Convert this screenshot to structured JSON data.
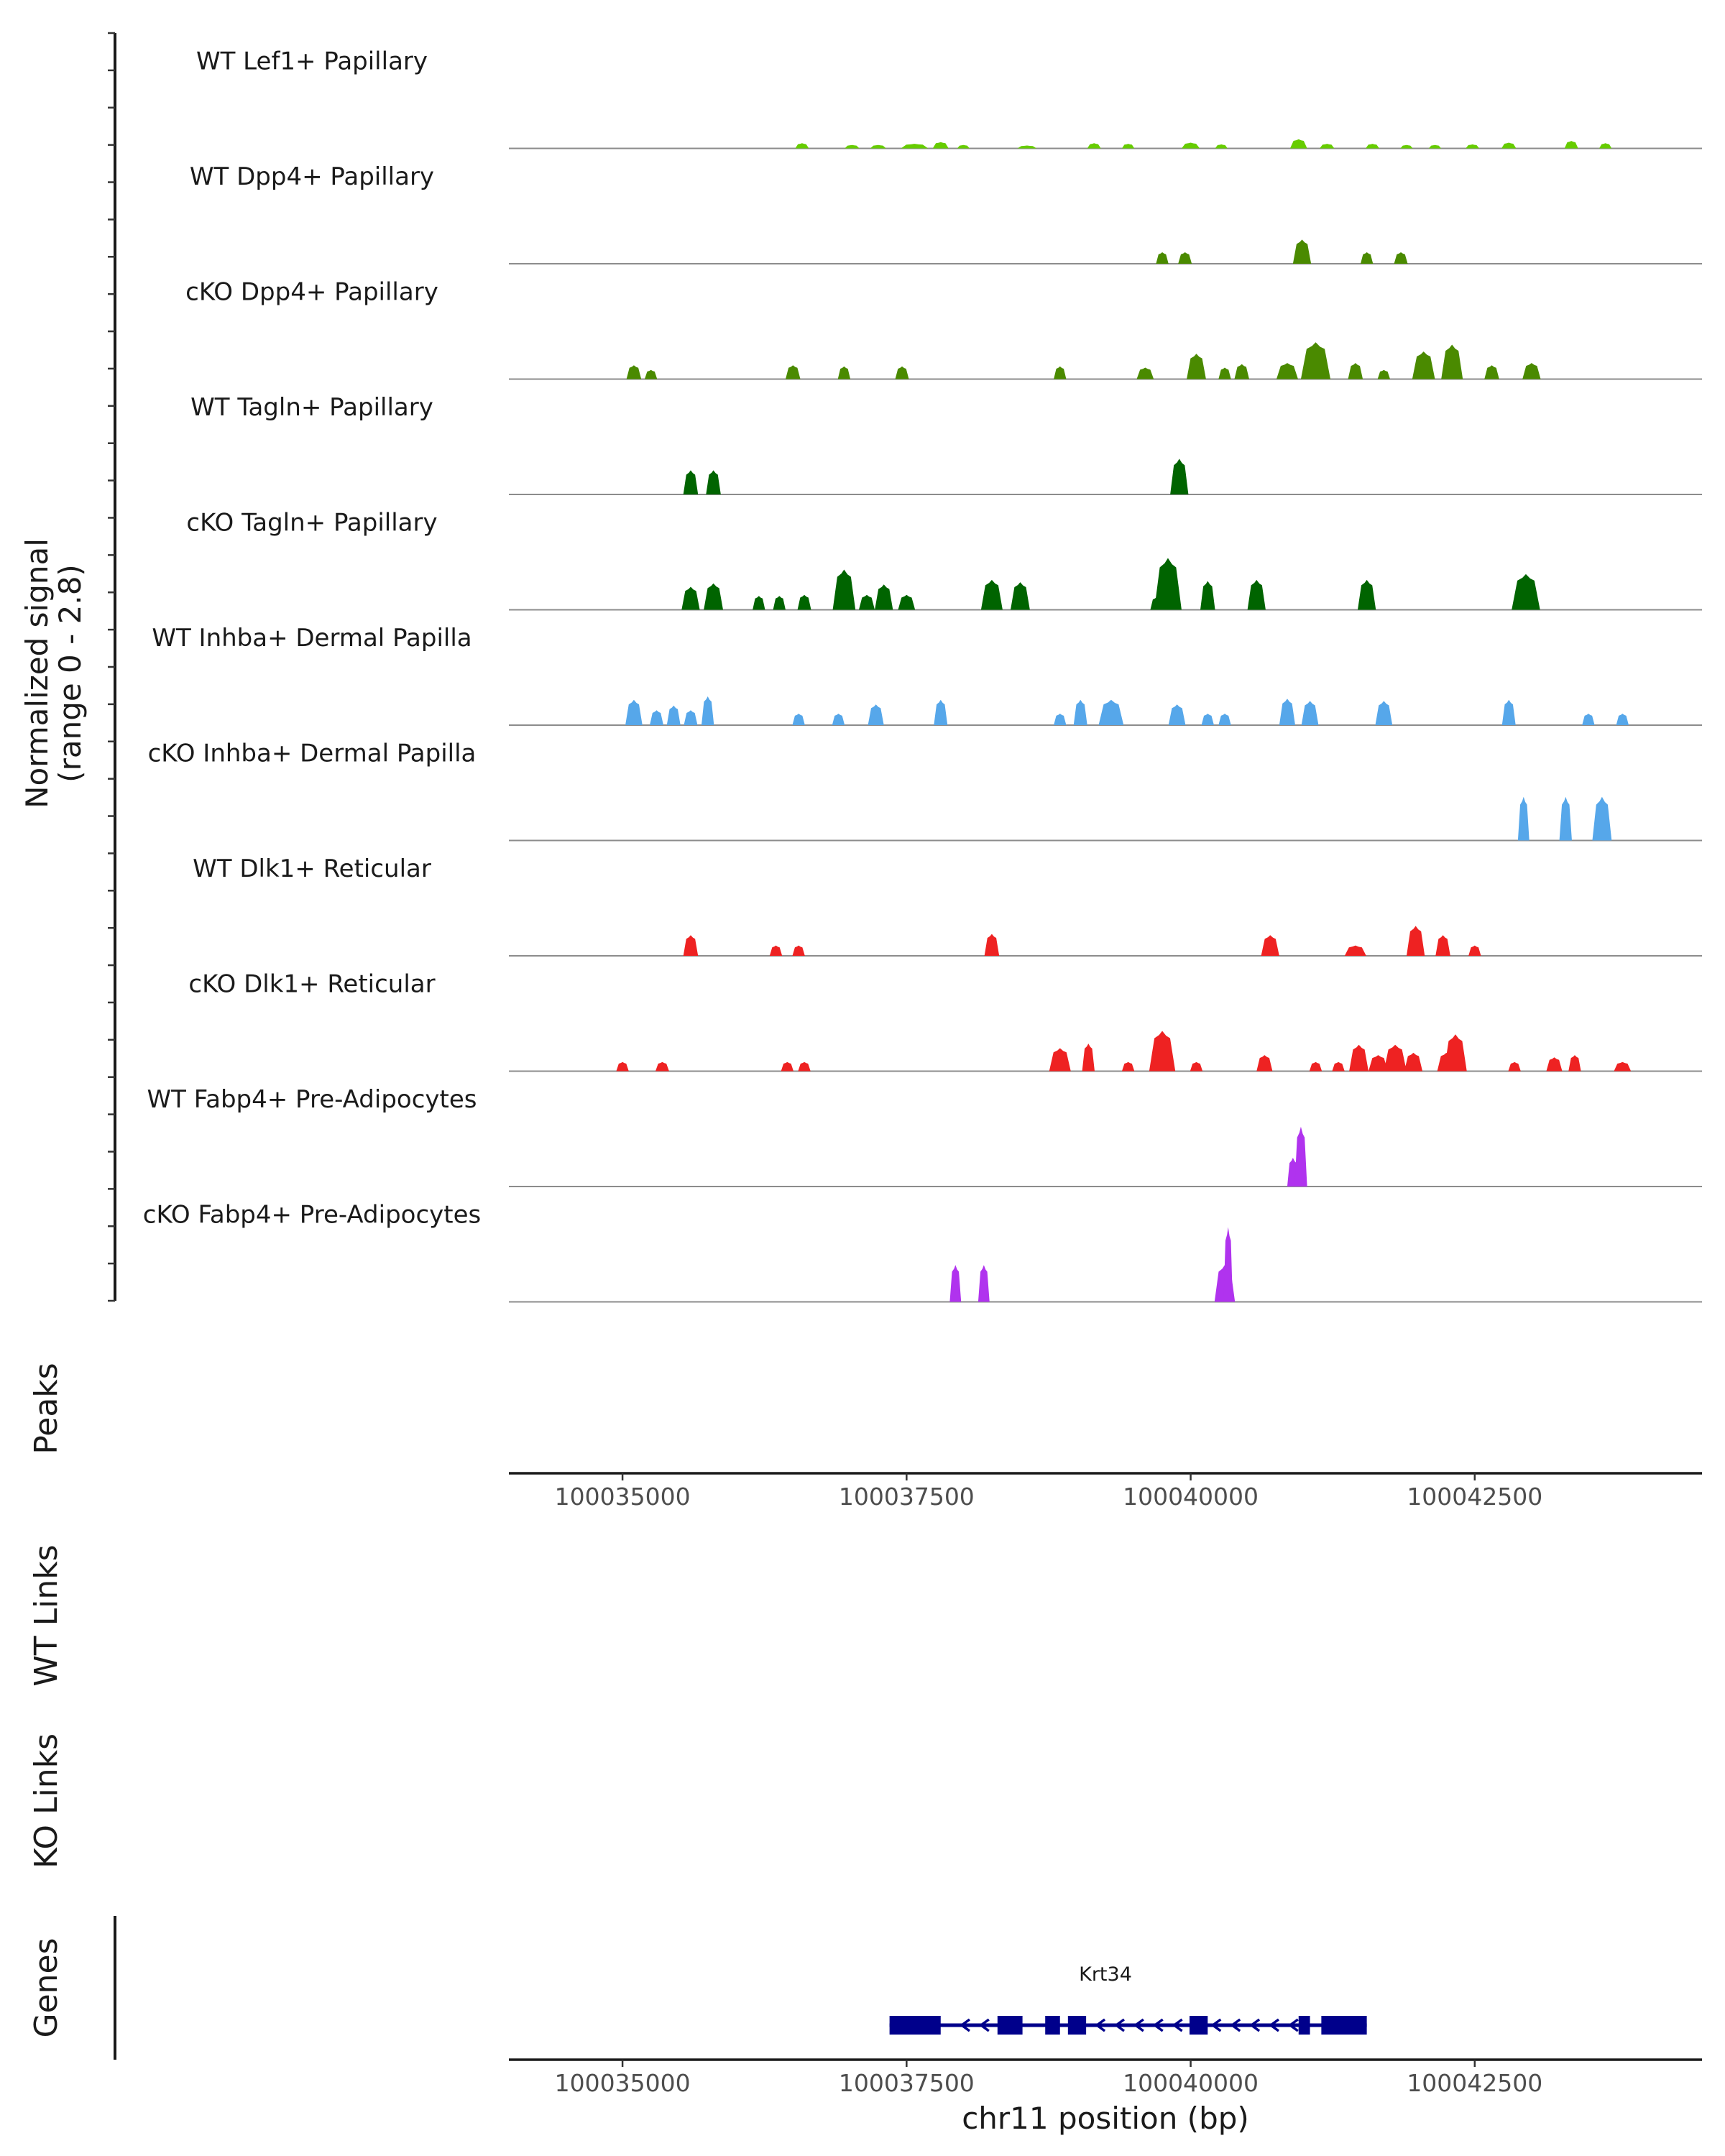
{
  "chart_data": {
    "type": "area",
    "chromosome": "chr11",
    "xlim": [
      100034000,
      100044500
    ],
    "ylim": [
      0,
      2.8
    ],
    "ylabel_line1": "Normalized signal",
    "ylabel_line2": "(range 0 - 2.8)",
    "xlabel": "chr11 position (bp)",
    "x_ticks": [
      100035000,
      100037500,
      100040000,
      100042500
    ],
    "x_tick_labels": [
      "100035000",
      "100037500",
      "100040000",
      "100042500"
    ],
    "panel_labels": {
      "peaks": "Peaks",
      "wt_links": "WT Links",
      "ko_links": "KO Links",
      "genes": "Genes"
    },
    "gene": {
      "name": "Krt34",
      "strand": "-",
      "start": 100037350,
      "end": 100041550,
      "color": "#00008B",
      "exons": [
        [
          100037350,
          100037800
        ],
        [
          100038300,
          100038520
        ],
        [
          100038720,
          100038850
        ],
        [
          100038920,
          100039080
        ],
        [
          100039990,
          100040150
        ],
        [
          100040950,
          100041050
        ],
        [
          100041150,
          100041550
        ]
      ]
    },
    "series": [
      {
        "name": "WT Lef1+ Papillary",
        "color": "#66CC00",
        "peaks": [
          [
            100036580,
            0.45,
            120
          ],
          [
            100037020,
            0.3,
            130
          ],
          [
            100037250,
            0.3,
            140
          ],
          [
            100037570,
            0.4,
            240
          ],
          [
            100037800,
            0.55,
            140
          ],
          [
            100038000,
            0.3,
            110
          ],
          [
            100038560,
            0.25,
            170
          ],
          [
            100039150,
            0.45,
            120
          ],
          [
            100039450,
            0.4,
            110
          ],
          [
            100040000,
            0.5,
            160
          ],
          [
            100040270,
            0.35,
            110
          ],
          [
            100040950,
            0.8,
            150
          ],
          [
            100041200,
            0.4,
            130
          ],
          [
            100041600,
            0.4,
            120
          ],
          [
            100041900,
            0.3,
            110
          ],
          [
            100042150,
            0.3,
            110
          ],
          [
            100042480,
            0.35,
            120
          ],
          [
            100042800,
            0.5,
            130
          ],
          [
            100043350,
            0.65,
            120
          ],
          [
            100043650,
            0.45,
            110
          ]
        ]
      },
      {
        "name": "WT Dpp4+ Papillary",
        "color": "#4A8A00",
        "peaks": [
          [
            100039750,
            1.0,
            110
          ],
          [
            100039950,
            1.0,
            120
          ],
          [
            100040980,
            2.1,
            160
          ],
          [
            100041550,
            1.0,
            110
          ],
          [
            100041850,
            1.0,
            120
          ]
        ]
      },
      {
        "name": "cKO Dpp4+ Papillary",
        "color": "#4A8A00",
        "peaks": [
          [
            100035100,
            1.2,
            130
          ],
          [
            100035250,
            0.8,
            110
          ],
          [
            100036500,
            1.2,
            130
          ],
          [
            100036950,
            1.1,
            110
          ],
          [
            100037460,
            1.1,
            120
          ],
          [
            100038850,
            1.1,
            110
          ],
          [
            100039600,
            1.0,
            150
          ],
          [
            100040050,
            2.2,
            170
          ],
          [
            100040300,
            1.0,
            110
          ],
          [
            100040450,
            1.3,
            130
          ],
          [
            100040850,
            1.4,
            190
          ],
          [
            100041100,
            3.2,
            260
          ],
          [
            100041450,
            1.4,
            130
          ],
          [
            100041700,
            0.8,
            110
          ],
          [
            100042050,
            2.4,
            200
          ],
          [
            100042300,
            3.0,
            190
          ],
          [
            100042650,
            1.2,
            130
          ],
          [
            100043000,
            1.4,
            160
          ]
        ]
      },
      {
        "name": "WT Tagln+ Papillary",
        "color": "#006400",
        "peaks": [
          [
            100035600,
            2.1,
            130
          ],
          [
            100035800,
            2.1,
            130
          ],
          [
            100039900,
            3.1,
            160
          ]
        ]
      },
      {
        "name": "cKO Tagln+ Papillary",
        "color": "#006400",
        "peaks": [
          [
            100035600,
            2.0,
            160
          ],
          [
            100035800,
            2.3,
            170
          ],
          [
            100036200,
            1.2,
            110
          ],
          [
            100036380,
            1.2,
            110
          ],
          [
            100036600,
            1.3,
            120
          ],
          [
            100036950,
            3.5,
            200
          ],
          [
            100037150,
            1.3,
            140
          ],
          [
            100037300,
            2.2,
            160
          ],
          [
            100037500,
            1.3,
            150
          ],
          [
            100038250,
            2.6,
            190
          ],
          [
            100038500,
            2.4,
            170
          ],
          [
            100039700,
            1.1,
            110
          ],
          [
            100039800,
            4.5,
            240
          ],
          [
            100040150,
            2.5,
            130
          ],
          [
            100040580,
            2.6,
            160
          ],
          [
            100041550,
            2.6,
            160
          ],
          [
            100042950,
            3.1,
            250
          ]
        ]
      },
      {
        "name": "WT Inhba+ Dermal Papilla",
        "color": "#56A7EA",
        "peaks": [
          [
            100035100,
            2.2,
            150
          ],
          [
            100035300,
            1.3,
            120
          ],
          [
            100035450,
            1.7,
            120
          ],
          [
            100035600,
            1.3,
            120
          ],
          [
            100035750,
            2.5,
            110
          ],
          [
            100036550,
            1.0,
            110
          ],
          [
            100036900,
            1.0,
            110
          ],
          [
            100037230,
            1.8,
            140
          ],
          [
            100037800,
            2.2,
            120
          ],
          [
            100038850,
            1.0,
            110
          ],
          [
            100039030,
            2.2,
            120
          ],
          [
            100039300,
            2.2,
            220
          ],
          [
            100039880,
            1.8,
            150
          ],
          [
            100040150,
            1.0,
            110
          ],
          [
            100040300,
            1.0,
            110
          ],
          [
            100040850,
            2.3,
            140
          ],
          [
            100041050,
            2.1,
            150
          ],
          [
            100041700,
            2.1,
            150
          ],
          [
            100042800,
            2.2,
            120
          ],
          [
            100043500,
            1.0,
            110
          ],
          [
            100043800,
            1.0,
            110
          ]
        ]
      },
      {
        "name": "cKO Inhba+ Dermal Papilla",
        "color": "#56A7EA",
        "peaks": [
          [
            100042930,
            3.8,
            100
          ],
          [
            100043300,
            3.8,
            110
          ],
          [
            100043620,
            3.8,
            170
          ]
        ]
      },
      {
        "name": "WT Dlk1+ Reticular",
        "color": "#EE2222",
        "peaks": [
          [
            100035600,
            1.8,
            130
          ],
          [
            100036350,
            0.9,
            110
          ],
          [
            100036550,
            0.9,
            110
          ],
          [
            100038250,
            1.9,
            130
          ],
          [
            100040700,
            1.8,
            160
          ],
          [
            100041450,
            0.9,
            190
          ],
          [
            100041980,
            2.6,
            160
          ],
          [
            100042220,
            1.8,
            130
          ],
          [
            100042500,
            0.9,
            110
          ]
        ]
      },
      {
        "name": "cKO Dlk1+ Reticular",
        "color": "#EE2222",
        "peaks": [
          [
            100035000,
            0.8,
            110
          ],
          [
            100035350,
            0.8,
            120
          ],
          [
            100036450,
            0.8,
            110
          ],
          [
            100036600,
            0.8,
            110
          ],
          [
            100038850,
            2.0,
            190
          ],
          [
            100039100,
            2.4,
            110
          ],
          [
            100039450,
            0.8,
            110
          ],
          [
            100039750,
            3.5,
            230
          ],
          [
            100040050,
            0.8,
            110
          ],
          [
            100040650,
            1.4,
            140
          ],
          [
            100041100,
            0.8,
            110
          ],
          [
            100041300,
            0.8,
            110
          ],
          [
            100041480,
            2.3,
            170
          ],
          [
            100041650,
            1.4,
            170
          ],
          [
            100041800,
            2.3,
            200
          ],
          [
            100041960,
            1.6,
            160
          ],
          [
            100042250,
            1.6,
            160
          ],
          [
            100042330,
            3.2,
            200
          ],
          [
            100042850,
            0.8,
            110
          ],
          [
            100043200,
            1.2,
            140
          ],
          [
            100043380,
            1.4,
            110
          ],
          [
            100043800,
            0.8,
            150
          ]
        ]
      },
      {
        "name": "WT Fabp4+ Pre-Adipocytes",
        "color": "#B033EE",
        "peaks": [
          [
            100040900,
            2.5,
            100
          ],
          [
            100040970,
            5.2,
            110
          ]
        ]
      },
      {
        "name": "cKO Fabp4+ Pre-Adipocytes",
        "color": "#B033EE",
        "peaks": [
          [
            100037930,
            3.2,
            100
          ],
          [
            100038180,
            3.2,
            100
          ],
          [
            100040300,
            3.2,
            180
          ],
          [
            100040330,
            6.5,
            80
          ]
        ]
      }
    ]
  }
}
